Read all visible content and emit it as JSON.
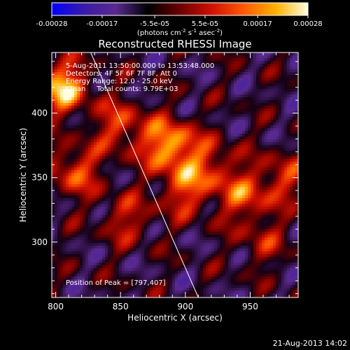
{
  "colorbar": {
    "tick_labels": [
      "-0.00028",
      "-0.00017",
      "-5.5e-05",
      "5.5e-05",
      "0.00017",
      "0.00028"
    ],
    "tick_values": [
      -0.00028,
      -0.00017,
      -5.5e-05,
      5.5e-05,
      0.00017,
      0.00028
    ],
    "range": [
      -0.00028,
      0.00028
    ],
    "units_main": "(photons cm",
    "units_exp1": "-2",
    "units_mid": " s",
    "units_exp2": "-1",
    "units_end": " asec",
    "units_exp3": "-2",
    "units_close": ")",
    "colors": [
      "#0000ff",
      "#3a1aa8",
      "#5a2a90",
      "#000000",
      "#6a0000",
      "#d01000",
      "#ff5a00",
      "#ffb000",
      "#ffffe0"
    ]
  },
  "chart_data": {
    "type": "heatmap",
    "title": "Reconstructed RHESSI Image",
    "xlabel": "Heliocentric X (arcsec)",
    "ylabel": "Heliocentric Y (arcsec)",
    "xlim": [
      797,
      987
    ],
    "ylim": [
      257,
      447
    ],
    "x_ticks": [
      800,
      850,
      900,
      950
    ],
    "y_ticks": [
      300,
      350,
      400
    ],
    "info_lines": [
      "5-Aug-2011 13:50:00.000 to 13:53:48.000",
      "Detectors: 4F 5F 6F 7F 8F, Att 0",
      "Energy Range: 12.0 - 25.0 keV",
      "Clean     Total counts: 9.79E+03"
    ],
    "peak_label": "Position of Peak = [797,407]",
    "peak": [
      797,
      407
    ],
    "limb_line": [
      [
        827,
        447
      ],
      [
        910,
        257
      ]
    ],
    "sources": [
      {
        "x": 805,
        "y": 420,
        "intensity": 1.0
      },
      {
        "x": 888,
        "y": 375,
        "intensity": 1.0
      },
      {
        "x": 850,
        "y": 390,
        "intensity": 0.6
      },
      {
        "x": 815,
        "y": 355,
        "intensity": 0.65
      },
      {
        "x": 900,
        "y": 340,
        "intensity": 0.6
      },
      {
        "x": 945,
        "y": 335,
        "intensity": 0.6
      },
      {
        "x": 975,
        "y": 350,
        "intensity": 0.5
      },
      {
        "x": 855,
        "y": 318,
        "intensity": 0.45
      },
      {
        "x": 960,
        "y": 300,
        "intensity": 0.35
      },
      {
        "x": 920,
        "y": 360,
        "intensity": 0.5
      }
    ]
  },
  "footer": {
    "timestamp": "21-Aug-2013 14:02"
  }
}
